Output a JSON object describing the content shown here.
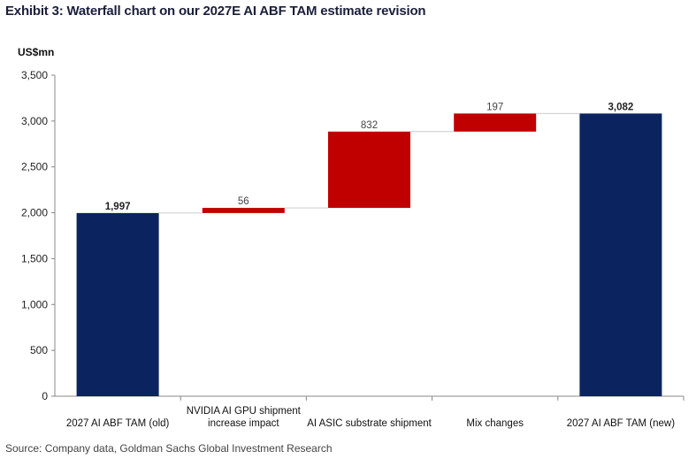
{
  "title": "Exhibit 3: Waterfall chart on our 2027E AI ABF TAM estimate revision",
  "unit_label": "US$mn",
  "source": "Source: Company data, Goldman Sachs Global Investment Research",
  "colors": {
    "total": "#0b2460",
    "increase": "#c00000",
    "axis": "#888888",
    "connector": "#cccccc"
  },
  "chart_data": {
    "type": "waterfall",
    "title": "Exhibit 3: Waterfall chart on our 2027E AI ABF TAM estimate revision",
    "ylabel": "US$mn",
    "ylim": [
      0,
      3500
    ],
    "yticks": [
      0,
      500,
      1000,
      1500,
      2000,
      2500,
      3000,
      3500
    ],
    "ytick_labels": [
      "0",
      "500",
      "1,000",
      "1,500",
      "2,000",
      "2,500",
      "3,000",
      "3,500"
    ],
    "categories": [
      {
        "label": [
          "2027 AI ABF TAM (old)"
        ],
        "kind": "total",
        "value": 1997,
        "data_label": "1,997"
      },
      {
        "label": [
          "NVIDIA AI GPU shipment",
          "increase impact"
        ],
        "kind": "increase",
        "value": 56,
        "data_label": "56"
      },
      {
        "label": [
          "AI ASIC substrate shipment"
        ],
        "kind": "increase",
        "value": 832,
        "data_label": "832"
      },
      {
        "label": [
          "Mix changes"
        ],
        "kind": "increase",
        "value": 197,
        "data_label": "197"
      },
      {
        "label": [
          "2027 AI ABF TAM (new)"
        ],
        "kind": "total",
        "value": 3082,
        "data_label": "3,082"
      }
    ]
  }
}
